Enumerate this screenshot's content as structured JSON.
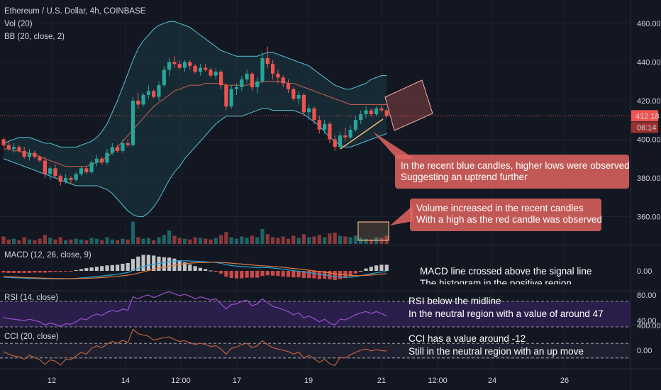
{
  "header": {
    "symbol": "Ethereum / U.S. Dollar, 4h, COINBASE",
    "vol": "Vol (20)",
    "bb": "BB (20, close, 2)",
    "macd": "MACD (12, 26, close, 9)",
    "rsi": "RSI (14, close)",
    "cci": "CCI (20, close)"
  },
  "price_axis": {
    "ticks": [
      "460.00",
      "440.00",
      "420.00",
      "400.00",
      "380.00",
      "360.00"
    ],
    "last_price": "412.18",
    "countdown": "06:14"
  },
  "macd_axis": {
    "ticks": [
      "0.00"
    ]
  },
  "rsi_axis": {
    "ticks": [
      "80.00",
      "40.00"
    ]
  },
  "cci_axis": {
    "ticks": [
      "400.00",
      "0.00"
    ]
  },
  "time_axis": {
    "ticks": [
      "12",
      "14",
      "12:00",
      "17",
      "19",
      "21",
      "12:00",
      "24",
      "26"
    ]
  },
  "annotations": {
    "candles": [
      "In the recent blue candles, higher lows were observed",
      "Suggesting an uptrend further"
    ],
    "volume": [
      "Volume increased in the recent candles",
      "With a high as the red candle was observed"
    ],
    "macd": [
      "MACD line crossed above the signal line",
      "The histogram in the positive region"
    ],
    "rsi": [
      "RSI below the midline",
      "In the neutral region with a value of around 47"
    ],
    "cci": [
      "CCI has a value around -12",
      "Still in the neutral region with an up move"
    ]
  },
  "colors": {
    "background": "#131722",
    "up": "#26a69a",
    "down": "#ef5350",
    "bb_band": "#4fb3c8",
    "bb_basis": "#b85a4f",
    "rsi_line": "#9c4fd0",
    "rsi_fill": "#2a1f4a",
    "annotation_box": "#e0645f",
    "cci_line": "#c9643e"
  },
  "chart_data": [
    {
      "type": "candlestick",
      "title": "Ethereum / U.S. Dollar, 4h, COINBASE",
      "ylim": [
        348,
        468
      ],
      "x_ticks": [
        "12",
        "14",
        "12:00",
        "17",
        "19",
        "21",
        "12:00",
        "24",
        "26"
      ],
      "last_price": 412.18,
      "candles": [
        [
          400,
          401,
          396,
          397
        ],
        [
          397,
          399,
          394,
          395
        ],
        [
          395,
          398,
          393,
          396
        ],
        [
          396,
          397,
          393,
          394
        ],
        [
          394,
          396,
          390,
          391
        ],
        [
          391,
          395,
          389,
          393
        ],
        [
          393,
          394,
          390,
          391
        ],
        [
          391,
          392,
          388,
          389
        ],
        [
          389,
          391,
          380,
          382
        ],
        [
          382,
          386,
          379,
          385
        ],
        [
          385,
          387,
          380,
          381
        ],
        [
          381,
          382,
          376,
          378
        ],
        [
          378,
          382,
          377,
          380
        ],
        [
          380,
          381,
          377,
          379
        ],
        [
          379,
          383,
          378,
          382
        ],
        [
          382,
          386,
          381,
          385
        ],
        [
          385,
          386,
          382,
          383
        ],
        [
          383,
          389,
          382,
          388
        ],
        [
          388,
          392,
          386,
          390
        ],
        [
          390,
          391,
          387,
          388
        ],
        [
          388,
          395,
          387,
          393
        ],
        [
          393,
          398,
          392,
          396
        ],
        [
          396,
          397,
          393,
          394
        ],
        [
          394,
          400,
          393,
          398
        ],
        [
          398,
          400,
          396,
          397
        ],
        [
          397,
          422,
          396,
          420
        ],
        [
          420,
          424,
          416,
          418
        ],
        [
          418,
          424,
          417,
          423
        ],
        [
          423,
          428,
          421,
          425
        ],
        [
          425,
          426,
          421,
          422
        ],
        [
          422,
          430,
          420,
          428
        ],
        [
          428,
          438,
          427,
          436
        ],
        [
          436,
          442,
          433,
          440
        ],
        [
          440,
          443,
          437,
          439
        ],
        [
          439,
          441,
          436,
          437
        ],
        [
          437,
          441,
          435,
          440
        ],
        [
          440,
          441,
          436,
          438
        ],
        [
          438,
          439,
          434,
          435
        ],
        [
          435,
          439,
          433,
          437
        ],
        [
          437,
          439,
          435,
          436
        ],
        [
          436,
          437,
          432,
          433
        ],
        [
          433,
          437,
          431,
          435
        ],
        [
          435,
          436,
          426,
          428
        ],
        [
          428,
          429,
          415,
          417
        ],
        [
          417,
          428,
          416,
          426
        ],
        [
          426,
          429,
          423,
          427
        ],
        [
          427,
          433,
          425,
          431
        ],
        [
          431,
          436,
          429,
          434
        ],
        [
          434,
          435,
          425,
          427
        ],
        [
          427,
          432,
          424,
          430
        ],
        [
          430,
          445,
          429,
          442
        ],
        [
          442,
          448,
          437,
          439
        ],
        [
          439,
          441,
          431,
          434
        ],
        [
          434,
          436,
          429,
          432
        ],
        [
          432,
          433,
          427,
          429
        ],
        [
          429,
          431,
          424,
          426
        ],
        [
          426,
          427,
          420,
          421
        ],
        [
          421,
          425,
          418,
          423
        ],
        [
          423,
          424,
          412,
          414
        ],
        [
          414,
          418,
          410,
          416
        ],
        [
          416,
          417,
          408,
          410
        ],
        [
          410,
          412,
          403,
          405
        ],
        [
          405,
          410,
          403,
          408
        ],
        [
          408,
          409,
          398,
          400
        ],
        [
          400,
          402,
          394,
          396
        ],
        [
          396,
          404,
          395,
          402
        ],
        [
          402,
          406,
          399,
          401
        ],
        [
          401,
          407,
          400,
          405
        ],
        [
          405,
          412,
          404,
          410
        ],
        [
          410,
          415,
          408,
          413
        ],
        [
          413,
          417,
          411,
          415
        ],
        [
          415,
          416,
          412,
          413
        ],
        [
          413,
          417,
          412,
          416
        ],
        [
          416,
          418,
          414,
          415
        ],
        [
          415,
          416,
          411,
          412
        ]
      ],
      "volume": [
        10,
        6,
        7,
        5,
        9,
        6,
        5,
        7,
        12,
        8,
        6,
        9,
        5,
        6,
        7,
        6,
        5,
        8,
        7,
        5,
        9,
        6,
        5,
        7,
        6,
        30,
        9,
        7,
        8,
        5,
        9,
        12,
        18,
        11,
        8,
        7,
        6,
        9,
        8,
        7,
        6,
        8,
        12,
        16,
        9,
        7,
        10,
        8,
        11,
        9,
        20,
        13,
        9,
        8,
        10,
        7,
        11,
        8,
        13,
        9,
        10,
        12,
        9,
        14,
        15,
        11,
        10,
        9,
        11,
        8,
        7,
        6,
        9,
        8,
        11
      ],
      "bollinger": {
        "upper": [
          398,
          399,
          400,
          401,
          401,
          401,
          400,
          399,
          398,
          398,
          397,
          396,
          396,
          396,
          396,
          397,
          398,
          399,
          401,
          404,
          408,
          414,
          420,
          427,
          434,
          441,
          447,
          451,
          454,
          457,
          459,
          460,
          461,
          461,
          460,
          459,
          458,
          456,
          454,
          452,
          450,
          448,
          446,
          445,
          444,
          443,
          443,
          443,
          443,
          443,
          444,
          445,
          445,
          444,
          443,
          442,
          441,
          440,
          439,
          438,
          436,
          434,
          432,
          430,
          428,
          427,
          426,
          426,
          427,
          428,
          429,
          431,
          432,
          433,
          433
        ],
        "basis": [
          395,
          395,
          394,
          394,
          393,
          393,
          392,
          391,
          390,
          389,
          388,
          387,
          386,
          386,
          386,
          386,
          386,
          387,
          388,
          389,
          391,
          393,
          396,
          399,
          402,
          405,
          408,
          411,
          414,
          417,
          419,
          421,
          423,
          425,
          426,
          427,
          428,
          428,
          428,
          429,
          429,
          429,
          429,
          428,
          428,
          428,
          428,
          428,
          429,
          429,
          430,
          430,
          430,
          430,
          430,
          429,
          429,
          428,
          427,
          426,
          425,
          424,
          423,
          422,
          421,
          420,
          419,
          418,
          418,
          418,
          418,
          418,
          418,
          418,
          418
        ],
        "lower": [
          390,
          389,
          388,
          387,
          386,
          385,
          384,
          383,
          382,
          381,
          380,
          379,
          378,
          377,
          376,
          376,
          376,
          376,
          376,
          375,
          374,
          372,
          369,
          366,
          363,
          361,
          360,
          360,
          362,
          365,
          369,
          374,
          379,
          383,
          386,
          390,
          393,
          396,
          399,
          402,
          405,
          408,
          410,
          412,
          412,
          412,
          412,
          413,
          414,
          415,
          416,
          416,
          415,
          415,
          415,
          415,
          415,
          414,
          413,
          411,
          409,
          407,
          404,
          401,
          399,
          397,
          396,
          396,
          397,
          398,
          399,
          400,
          401,
          402,
          403
        ]
      }
    },
    {
      "type": "line",
      "title": "MACD (12, 26, close, 9)",
      "ylim": [
        -1.2,
        1.2
      ],
      "series": [
        {
          "name": "MACD",
          "values": [
            -0.55,
            -0.58,
            -0.6,
            -0.62,
            -0.64,
            -0.66,
            -0.67,
            -0.68,
            -0.7,
            -0.7,
            -0.7,
            -0.71,
            -0.7,
            -0.69,
            -0.66,
            -0.62,
            -0.58,
            -0.54,
            -0.5,
            -0.45,
            -0.4,
            -0.35,
            -0.3,
            -0.22,
            -0.15,
            0.05,
            0.22,
            0.38,
            0.5,
            0.58,
            0.65,
            0.72,
            0.8,
            0.86,
            0.88,
            0.88,
            0.87,
            0.85,
            0.83,
            0.8,
            0.77,
            0.73,
            0.67,
            0.55,
            0.47,
            0.42,
            0.38,
            0.36,
            0.32,
            0.28,
            0.3,
            0.29,
            0.25,
            0.2,
            0.14,
            0.08,
            0.02,
            -0.03,
            -0.1,
            -0.15,
            -0.22,
            -0.3,
            -0.35,
            -0.43,
            -0.52,
            -0.55,
            -0.57,
            -0.56,
            -0.5,
            -0.42,
            -0.33,
            -0.25,
            -0.17,
            -0.1,
            -0.06
          ]
        },
        {
          "name": "Signal",
          "values": [
            -0.5,
            -0.52,
            -0.54,
            -0.56,
            -0.58,
            -0.6,
            -0.62,
            -0.63,
            -0.65,
            -0.66,
            -0.67,
            -0.68,
            -0.68,
            -0.68,
            -0.68,
            -0.67,
            -0.66,
            -0.64,
            -0.62,
            -0.59,
            -0.56,
            -0.52,
            -0.48,
            -0.43,
            -0.38,
            -0.3,
            -0.2,
            -0.09,
            0.03,
            0.13,
            0.23,
            0.32,
            0.41,
            0.5,
            0.57,
            0.63,
            0.68,
            0.71,
            0.74,
            0.75,
            0.76,
            0.76,
            0.75,
            0.72,
            0.68,
            0.64,
            0.6,
            0.56,
            0.52,
            0.48,
            0.45,
            0.42,
            0.39,
            0.35,
            0.31,
            0.26,
            0.21,
            0.16,
            0.11,
            0.06,
            0.0,
            -0.06,
            -0.12,
            -0.18,
            -0.25,
            -0.31,
            -0.36,
            -0.4,
            -0.42,
            -0.42,
            -0.4,
            -0.37,
            -0.33,
            -0.28,
            -0.24
          ]
        }
      ]
    },
    {
      "type": "line",
      "title": "RSI (14, close)",
      "ylim": [
        20,
        90
      ],
      "series": [
        {
          "name": "RSI",
          "values": [
            45,
            43,
            42,
            41,
            40,
            42,
            40,
            38,
            33,
            36,
            34,
            31,
            35,
            34,
            38,
            43,
            41,
            47,
            50,
            48,
            53,
            56,
            54,
            58,
            56,
            77,
            74,
            78,
            80,
            76,
            79,
            83,
            85,
            82,
            79,
            81,
            78,
            74,
            77,
            75,
            72,
            74,
            66,
            58,
            65,
            66,
            70,
            72,
            63,
            66,
            74,
            68,
            62,
            60,
            57,
            54,
            49,
            52,
            44,
            47,
            43,
            38,
            42,
            36,
            33,
            42,
            41,
            45,
            49,
            52,
            54,
            51,
            54,
            51,
            47
          ]
        }
      ]
    },
    {
      "type": "line",
      "title": "CCI (20, close)",
      "ylim": [
        -300,
        500
      ],
      "series": [
        {
          "name": "CCI",
          "values": [
            -20,
            -60,
            -90,
            -100,
            -140,
            -80,
            -110,
            -150,
            -220,
            -150,
            -170,
            -230,
            -140,
            -150,
            -90,
            -30,
            -60,
            30,
            70,
            40,
            100,
            140,
            110,
            160,
            120,
            330,
            260,
            240,
            220,
            160,
            180,
            200,
            210,
            170,
            140,
            150,
            120,
            90,
            110,
            90,
            60,
            70,
            20,
            -60,
            30,
            50,
            90,
            110,
            40,
            70,
            150,
            90,
            40,
            20,
            0,
            -20,
            -60,
            -30,
            -120,
            -80,
            -130,
            -190,
            -140,
            -210,
            -240,
            -110,
            -120,
            -70,
            -30,
            0,
            20,
            -10,
            10,
            -5,
            -12
          ]
        }
      ]
    }
  ]
}
